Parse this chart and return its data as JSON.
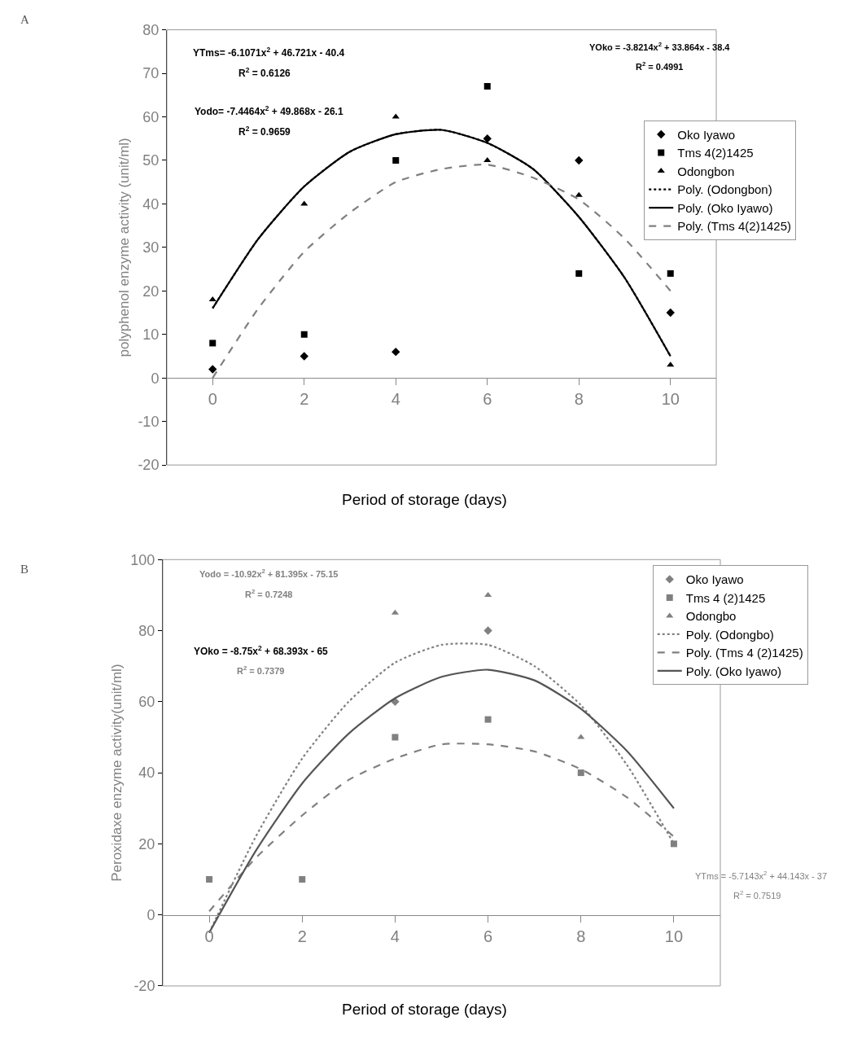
{
  "chart_data": [
    {
      "type": "scatter",
      "xlabel": "Period of storage (days)",
      "ylabel": "polyphenol enzyme activity (unit/ml)",
      "xlim": [
        -1,
        11
      ],
      "xticks": [
        0,
        2,
        4,
        6,
        8,
        10
      ],
      "ylim": [
        -20,
        80
      ],
      "yticks": [
        -20,
        -10,
        0,
        10,
        20,
        30,
        40,
        50,
        60,
        70,
        80
      ],
      "legend": "right",
      "annotations": [
        "A",
        "YTms= -6.1071x$^{2}$ + 46.721x - 40.4",
        "R$^{2}$ = 0.6126",
        "Yodo= -7.4464x$^{2}$ + 49.868x - 26.1",
        "R$^{2}$ = 0.9659",
        "YOko = -3.8214x$^{2}$ + 33.864x - 38.4",
        "R$^{2}$ = 0.4991"
      ],
      "series": [
        {
          "name": "Oko Iyawo",
          "marker": "diamond",
          "color": "#000000",
          "x": [
            0,
            2,
            4,
            6,
            8,
            10
          ],
          "values": [
            2,
            5,
            6,
            55,
            50,
            15
          ]
        },
        {
          "name": "Tms 4(2)1425",
          "marker": "square",
          "color": "#000000",
          "x": [
            0,
            2,
            4,
            6,
            8,
            10
          ],
          "values": [
            8,
            10,
            50,
            67,
            24,
            24
          ]
        },
        {
          "name": "Odongbon",
          "marker": "triangle",
          "color": "#000000",
          "x": [
            0,
            2,
            4,
            6,
            8,
            10
          ],
          "values": [
            18,
            40,
            60,
            50,
            42,
            3
          ]
        },
        {
          "name": "Poly. (Odongbon)",
          "type": "line",
          "line_style": "dotted",
          "color": "#000000",
          "x": [
            0,
            1,
            2,
            3,
            4,
            5,
            6,
            7,
            8,
            9,
            10
          ],
          "values": [
            16,
            32,
            44,
            52,
            56,
            57,
            54,
            48,
            37,
            23,
            5
          ]
        },
        {
          "name": "Poly. (Oko Iyawo)",
          "type": "line",
          "line_style": "solid",
          "color": "#000000",
          "x": [
            0,
            1,
            2,
            3,
            4,
            5,
            6,
            7,
            8,
            9,
            10
          ],
          "values": [
            16,
            32,
            44,
            52,
            56,
            57,
            54,
            48,
            37,
            23,
            5
          ]
        },
        {
          "name": "Poly. (Tms 4(2)1425)",
          "type": "line",
          "line_style": "dashed",
          "color": "#808080",
          "x": [
            0,
            1,
            2,
            3,
            4,
            5,
            6,
            7,
            8,
            9,
            10
          ],
          "values": [
            0,
            16,
            29,
            38,
            45,
            48,
            49,
            46,
            41,
            32,
            20
          ]
        }
      ]
    },
    {
      "type": "scatter",
      "xlabel": "Period of storage (days)",
      "ylabel": "Peroxidaxe enzyme activity(unit/ml)",
      "xlim": [
        -1,
        11
      ],
      "xticks": [
        0,
        2,
        4,
        6,
        8,
        10
      ],
      "ylim": [
        -20,
        100
      ],
      "yticks": [
        -20,
        0,
        20,
        40,
        60,
        80,
        100
      ],
      "legend": "top right",
      "annotations": [
        "B",
        "Yodo = -10.92x$^{2}$ + 81.395x - 75.15",
        "R$^{2}$ = 0.7248",
        "YOko = -8.75x$^{2}$ + 68.393x - 65",
        "R$^{2}$ = 0.7379",
        "YTms = -5.7143x$^{2}$ + 44.143x - 37",
        "R$^{2}$ = 0.7519"
      ],
      "series": [
        {
          "name": "Oko Iyawo",
          "marker": "diamond",
          "color": "#808080",
          "x": [
            4,
            6
          ],
          "values": [
            60,
            80
          ]
        },
        {
          "name": "Tms 4 (2)1425",
          "marker": "square",
          "color": "#808080",
          "x": [
            0,
            2,
            4,
            6,
            8,
            10
          ],
          "values": [
            10,
            10,
            50,
            55,
            40,
            20
          ]
        },
        {
          "name": "Odongbo",
          "marker": "triangle",
          "color": "#808080",
          "x": [
            4,
            6,
            8
          ],
          "values": [
            85,
            90,
            50
          ]
        },
        {
          "name": "Poly. (Odongbo)",
          "type": "line",
          "line_style": "dotted",
          "color": "#808080",
          "x": [
            0,
            1,
            2,
            3,
            4,
            5,
            6,
            7,
            8,
            9,
            10
          ],
          "values": [
            -5,
            22,
            44,
            60,
            71,
            76,
            76,
            70,
            59,
            42,
            20
          ]
        },
        {
          "name": "Poly. (Tms 4 (2)1425)",
          "type": "line",
          "line_style": "dashed",
          "color": "#808080",
          "x": [
            0,
            1,
            2,
            3,
            4,
            5,
            6,
            7,
            8,
            9,
            10
          ],
          "values": [
            1,
            16,
            28,
            38,
            44,
            48,
            48,
            46,
            41,
            33,
            22
          ]
        },
        {
          "name": "Poly. (Oko Iyawo)",
          "type": "line",
          "line_style": "solid",
          "color": "#555555",
          "x": [
            0,
            1,
            2,
            3,
            4,
            5,
            6,
            7,
            8,
            9,
            10
          ],
          "values": [
            -5,
            18,
            37,
            51,
            61,
            67,
            69,
            66,
            58,
            46,
            30
          ]
        }
      ]
    }
  ]
}
